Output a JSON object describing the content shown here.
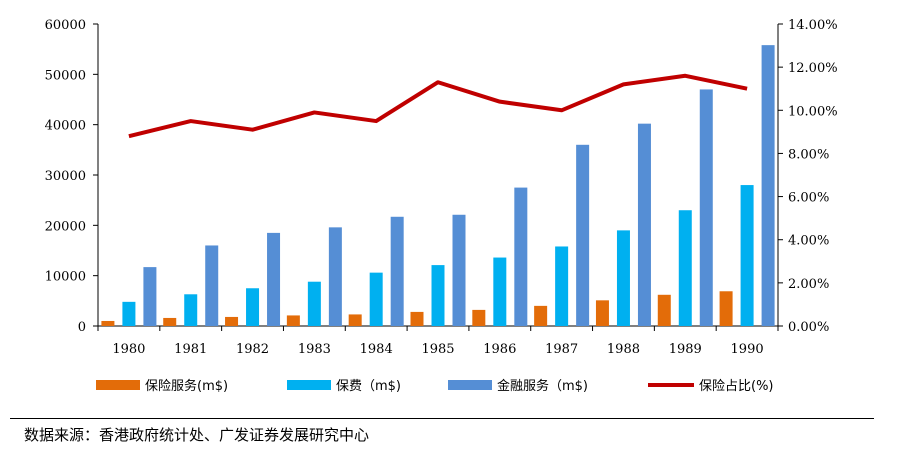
{
  "chart_data": {
    "type": "bar",
    "categories": [
      "1980",
      "1981",
      "1982",
      "1983",
      "1984",
      "1985",
      "1986",
      "1987",
      "1988",
      "1989",
      "1990"
    ],
    "series": [
      {
        "name": "保险服务(m$)",
        "axis": "left",
        "color": "#E36C09",
        "values": [
          1000,
          1600,
          1800,
          2100,
          2300,
          2800,
          3200,
          4000,
          5100,
          6200,
          6900
        ]
      },
      {
        "name": "保费（m$)",
        "axis": "left",
        "color": "#00B0F0",
        "values": [
          4800,
          6300,
          7500,
          8800,
          10600,
          12100,
          13600,
          15800,
          19000,
          23000,
          28000
        ]
      },
      {
        "name": "金融服务（m$)",
        "axis": "left",
        "color": "#558ED5",
        "values": [
          11700,
          16000,
          18500,
          19600,
          21700,
          22100,
          27500,
          36000,
          40200,
          47000,
          55800
        ]
      },
      {
        "name": "保险占比(%)",
        "axis": "right",
        "type": "line",
        "color": "#C00000",
        "values": [
          8.8,
          9.5,
          9.1,
          9.9,
          9.5,
          11.3,
          10.4,
          10.0,
          11.2,
          11.6,
          11.0
        ]
      }
    ],
    "yleft": {
      "min": 0,
      "max": 60000,
      "step": 10000,
      "ticks": [
        "0",
        "10000",
        "20000",
        "30000",
        "40000",
        "50000",
        "60000"
      ]
    },
    "yright": {
      "min": 0,
      "max": 14,
      "step": 2,
      "ticks": [
        "0.00%",
        "2.00%",
        "4.00%",
        "6.00%",
        "8.00%",
        "10.00%",
        "12.00%",
        "14.00%"
      ]
    },
    "legend_position": "bottom",
    "title": "",
    "xlabel": "",
    "ylabel": ""
  },
  "source": "数据来源：香港政府统计处、广发证券发展研究中心"
}
